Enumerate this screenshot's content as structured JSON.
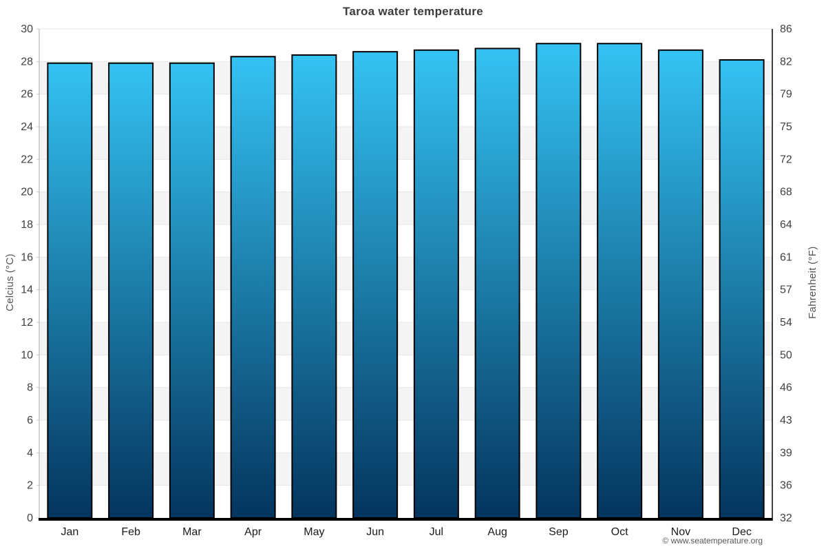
{
  "page_title": "Taroa water temperature",
  "footer": {
    "credit": "© www.seatemperature.org"
  },
  "chart_data": {
    "type": "bar",
    "title": "Taroa water temperature",
    "categories": [
      "Jan",
      "Feb",
      "Mar",
      "Apr",
      "May",
      "Jun",
      "Jul",
      "Aug",
      "Sep",
      "Oct",
      "Nov",
      "Dec"
    ],
    "values": [
      27.9,
      27.9,
      27.9,
      28.3,
      28.4,
      28.6,
      28.7,
      28.8,
      29.1,
      29.1,
      28.7,
      28.1
    ],
    "unit": "°C",
    "ylabel_left": "Celcius (°C)",
    "ylabel_right": "Fahrenheit (°F)",
    "ylim": [
      0,
      30
    ],
    "ytick_step": 2,
    "yticks_celsius": [
      0,
      2,
      4,
      6,
      8,
      10,
      12,
      14,
      16,
      18,
      20,
      22,
      24,
      26,
      28,
      30
    ],
    "yticks_fahrenheit": [
      "32",
      "36",
      "39",
      "43",
      "46",
      "50",
      "54",
      "57",
      "61",
      "64",
      "68",
      "72",
      "75",
      "79",
      "82",
      "86"
    ],
    "grid": true,
    "legend_position": "none",
    "band_pattern": "alternating horizontal bands every 2°C",
    "colors": {
      "bar_gradient_top": "#34c3f3",
      "bar_gradient_bottom": "#04355e",
      "bar_border": "#000000",
      "band_fill": "#f4f4f4",
      "gridline": "#e6e6e6",
      "left_spine": "#a8a8a8",
      "left_tick": "#cccccc",
      "right_spine": "#000000",
      "baseline": "#000000",
      "title_text": "#3c3c3c",
      "tick_text": "#3f3f3f",
      "axis_label_text": "#555555",
      "footer_text": "#555555"
    }
  }
}
